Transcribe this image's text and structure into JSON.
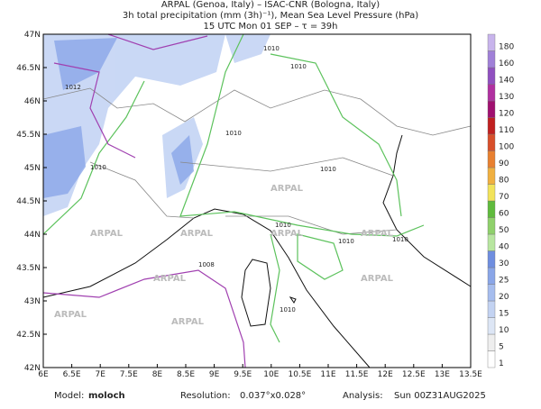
{
  "header": {
    "lines": [
      "ARPAL (Genoa, Italy)  –  ISAC-CNR (Bologna, Italy)",
      "3h total precipitation (mm (3h)⁻¹), Mean Sea Level Pressure (hPa)",
      "15 UTC Mon 01 SEP  –  τ = 39h"
    ]
  },
  "map": {
    "lon_ticks": [
      "6E",
      "6.5E",
      "7E",
      "7.5E",
      "8E",
      "8.5E",
      "9E",
      "9.5E",
      "10E",
      "10.5E",
      "11E",
      "11.5E",
      "12E",
      "12.5E",
      "13E",
      "13.5E"
    ],
    "lat_ticks": [
      "47N",
      "46.5N",
      "46N",
      "45.5N",
      "45N",
      "44.5N",
      "44N",
      "43.5N",
      "43N",
      "42.5N",
      "42N"
    ],
    "watermark": "ARPAL",
    "contour_labels": [
      "1008",
      "1010",
      "1012"
    ]
  },
  "colorbar": {
    "labels": [
      1,
      5,
      10,
      15,
      20,
      25,
      30,
      40,
      50,
      60,
      70,
      80,
      90,
      100,
      110,
      120,
      130,
      140,
      160,
      180
    ],
    "colors": [
      "#ffffff",
      "#eeeeee",
      "#dde6f5",
      "#c3d3f2",
      "#a6bdee",
      "#8aa6e8",
      "#6f8ee0",
      "#b8e6a0",
      "#8fd16b",
      "#5fbb3d",
      "#f2e35a",
      "#f0b040",
      "#e88030",
      "#d84f2a",
      "#c02020",
      "#a01070",
      "#b030a0",
      "#9050c0",
      "#a080d8",
      "#c8b4ec"
    ]
  },
  "footer": {
    "model_label": "Model:",
    "model": "moloch",
    "res_label": "Resolution:",
    "res": "0.037°x0.028°",
    "analysis_label": "Analysis:",
    "analysis": "Sun 00Z31AUG2025"
  }
}
